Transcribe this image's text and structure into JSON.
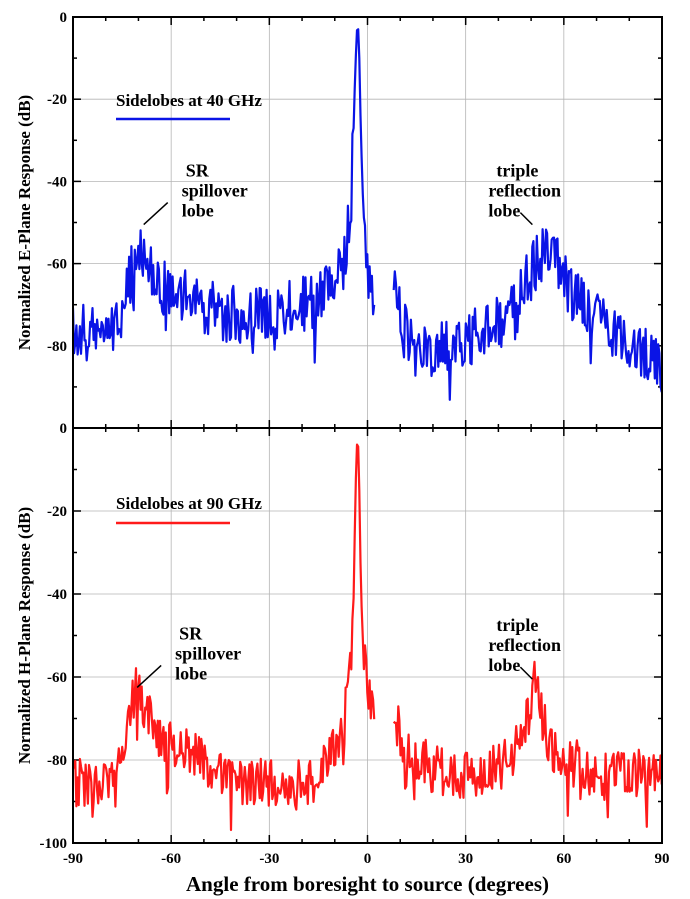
{
  "chart_data": [
    {
      "type": "line",
      "id": "top",
      "ylabel": "Normalized E-Plane Response (dB)",
      "xlabel": "",
      "xlim": [
        -90,
        90
      ],
      "ylim": [
        -100,
        0
      ],
      "xticks": [
        -90,
        -60,
        -30,
        0,
        30,
        60,
        90
      ],
      "yticks": [
        -80,
        -60,
        -40,
        -20,
        0
      ],
      "grid": true,
      "legend_placement": "top-left",
      "series": [
        {
          "name": "Sidelobes at 40 GHz",
          "color": "#0a14e6",
          "x": [
            -90,
            -85,
            -80,
            -75,
            -72,
            -70,
            -67,
            -62,
            -55,
            -45,
            -35,
            -25,
            -15,
            -10,
            -7,
            -5,
            -4,
            -3.5,
            -3,
            -2.5,
            -2,
            -1,
            0,
            1,
            2,
            8,
            10,
            15,
            25,
            35,
            45,
            50,
            55,
            60,
            65,
            70,
            75,
            80,
            85,
            90
          ],
          "y": [
            -75,
            -78,
            -77,
            -72,
            -62,
            -55,
            -62,
            -66,
            -68,
            -72,
            -73,
            -71,
            -69,
            -65,
            -60,
            -45,
            -20,
            -8,
            0,
            -10,
            -30,
            -50,
            -62,
            -62,
            -68,
            -68,
            -73,
            -82,
            -80,
            -77,
            -72,
            -62,
            -56,
            -64,
            -70,
            -74,
            -77,
            -80,
            -82,
            -85
          ]
        }
      ],
      "annotations": [
        {
          "lines": [
            "SR",
            "spillover",
            "lobe"
          ],
          "x": -69,
          "y": -51
        },
        {
          "lines": [
            "triple",
            "reflection",
            "lobe"
          ],
          "x": 51,
          "y": -51
        }
      ]
    },
    {
      "type": "line",
      "id": "bottom",
      "ylabel": "Normalized H-Plane Response (dB)",
      "xlabel": "Angle from boresight to source (degrees)",
      "xlim": [
        -90,
        90
      ],
      "ylim": [
        -100,
        0
      ],
      "xticks": [
        -90,
        -60,
        -30,
        0,
        30,
        60,
        90
      ],
      "yticks": [
        -100,
        -80,
        -60,
        -40,
        -20,
        0
      ],
      "grid": true,
      "legend_placement": "top-left",
      "series": [
        {
          "name": "Sidelobes at 90 GHz",
          "color": "#ff1a1a",
          "x": [
            -90,
            -85,
            -80,
            -75,
            -73,
            -71,
            -70,
            -68,
            -65,
            -60,
            -50,
            -40,
            -30,
            -20,
            -15,
            -10,
            -7,
            -5,
            -4,
            -3.5,
            -3,
            -2.5,
            -2,
            -1,
            0,
            1,
            2,
            8,
            10,
            20,
            30,
            40,
            45,
            48,
            50,
            51,
            53,
            55,
            60,
            70,
            80,
            90
          ],
          "y": [
            -85,
            -86,
            -86,
            -80,
            -70,
            -64,
            -63,
            -68,
            -73,
            -76,
            -80,
            -84,
            -86,
            -86,
            -84,
            -78,
            -70,
            -55,
            -30,
            -10,
            0,
            -15,
            -40,
            -55,
            -62,
            -65,
            -73,
            -65,
            -76,
            -82,
            -84,
            -82,
            -78,
            -72,
            -66,
            -60,
            -68,
            -75,
            -80,
            -83,
            -83,
            -82
          ]
        }
      ],
      "annotations": [
        {
          "lines": [
            "SR",
            "spillover",
            "lobe"
          ],
          "x": -71,
          "y": -63
        },
        {
          "lines": [
            "triple",
            "reflection",
            "lobe"
          ],
          "x": 51,
          "y": -61
        }
      ]
    }
  ]
}
